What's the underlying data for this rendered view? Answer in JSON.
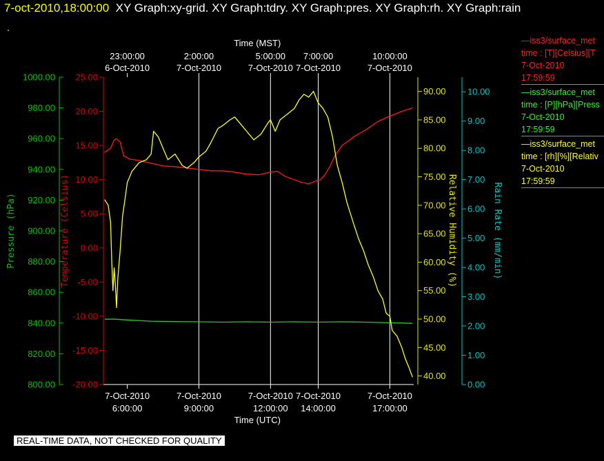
{
  "header": {
    "timestamp": "7-oct-2010,18:00:00",
    "graphs": "XY Graph:xy-grid.  XY Graph:tdry.  XY Graph:pres.  XY Graph:rh.  XY Graph:rain",
    "dot": "."
  },
  "notice": "REAL-TIME DATA, NOT CHECKED FOR QUALITY",
  "legend": [
    {
      "color": "#ff2020",
      "lines": [
        "—iss3/surface_met",
        "time : [T][Celsius][T",
        "7-Oct-2010",
        "17:59:59"
      ]
    },
    {
      "color": "#20ff20",
      "lines": [
        "—iss3/surface_met",
        "time : [P][hPa][Press",
        "7-Oct-2010",
        "17:59:59"
      ]
    },
    {
      "color": "#ffff30",
      "lines": [
        "—iss3/surface_met",
        "time : [rh][%][Relativ",
        "7-Oct-2010",
        "17:59:59"
      ]
    }
  ],
  "chart_data": {
    "type": "line",
    "x_bottom": {
      "label": "Time (UTC)",
      "range_hours": [
        5.0,
        18.0
      ],
      "ticks": [
        {
          "hour": 6,
          "date": "7-Oct-2010",
          "time": "6:00:00"
        },
        {
          "hour": 9,
          "date": "7-Oct-2010",
          "time": "9:00:00"
        },
        {
          "hour": 12,
          "date": "7-Oct-2010",
          "time": "12:00:00"
        },
        {
          "hour": 14,
          "date": "7-Oct-2010",
          "time": "14:00:00"
        },
        {
          "hour": 17,
          "date": "7-Oct-2010",
          "time": "17:00:00"
        }
      ]
    },
    "x_top": {
      "label": "Time (MST)",
      "ticks": [
        {
          "hour": 6,
          "time": "23:00:00",
          "date": "6-Oct-2010"
        },
        {
          "hour": 9,
          "time": "2:00:00",
          "date": "7-Oct-2010"
        },
        {
          "hour": 12,
          "time": "5:00:00",
          "date": "7-Oct-2010"
        },
        {
          "hour": 14,
          "time": "7:00:00",
          "date": "7-Oct-2010"
        },
        {
          "hour": 17,
          "time": "10:00:00",
          "date": "7-Oct-2010"
        }
      ]
    },
    "grid_x": [
      9,
      12,
      14,
      17
    ],
    "y_axes": {
      "pressure": {
        "label": "Pressure (hPa)",
        "range": [
          800,
          1000
        ],
        "ticks": [
          "800.00",
          "820.00",
          "840.00",
          "860.00",
          "880.00",
          "900.00",
          "920.00",
          "940.00",
          "960.00",
          "980.00",
          "1000.00"
        ],
        "color": "#00c800"
      },
      "temperature": {
        "label": "Temperature (Celsius)",
        "range": [
          -20,
          25
        ],
        "ticks": [
          "-20.00",
          "-15.00",
          "-10.00",
          "-5.00",
          "0.00",
          "5.00",
          "10.00",
          "15.00",
          "20.00",
          "25.00"
        ],
        "color": "#e00000"
      },
      "rh": {
        "label": "Relative Humidity (%)",
        "range": [
          38.5,
          92.5
        ],
        "ticks": [
          "40.00",
          "45.00",
          "50.00",
          "55.00",
          "60.00",
          "65.00",
          "70.00",
          "75.00",
          "80.00",
          "85.00",
          "90.00"
        ],
        "color": "#e8e800"
      },
      "rain": {
        "label": "Rain Rate (mm/min)",
        "range": [
          0,
          10.5
        ],
        "ticks": [
          "0.00",
          "1.00",
          "2.00",
          "3.00",
          "4.00",
          "5.00",
          "6.00",
          "7.00",
          "8.00",
          "9.00",
          "10.00"
        ],
        "color": "#00c8c8"
      }
    },
    "series": [
      {
        "name": "iss3/surface_met T (Celsius)",
        "axis": "temperature",
        "color": "#ff1a1a",
        "points": [
          [
            5.05,
            14.0
          ],
          [
            5.3,
            14.6
          ],
          [
            5.45,
            15.8
          ],
          [
            5.55,
            16.0
          ],
          [
            5.7,
            15.5
          ],
          [
            5.85,
            13.5
          ],
          [
            6.1,
            13.0
          ],
          [
            6.5,
            12.8
          ],
          [
            7.0,
            12.4
          ],
          [
            7.5,
            12.0
          ],
          [
            8.0,
            11.9
          ],
          [
            8.5,
            11.7
          ],
          [
            9.0,
            11.5
          ],
          [
            9.5,
            11.3
          ],
          [
            10.0,
            11.3
          ],
          [
            10.5,
            11.1
          ],
          [
            11.0,
            10.8
          ],
          [
            11.5,
            10.7
          ],
          [
            12.0,
            11.1
          ],
          [
            12.3,
            11.2
          ],
          [
            12.6,
            10.5
          ],
          [
            13.0,
            10.0
          ],
          [
            13.3,
            9.6
          ],
          [
            13.6,
            9.4
          ],
          [
            13.9,
            9.8
          ],
          [
            14.1,
            10.0
          ],
          [
            14.3,
            10.8
          ],
          [
            14.5,
            12.0
          ],
          [
            14.7,
            13.5
          ],
          [
            15.0,
            15.0
          ],
          [
            15.5,
            16.3
          ],
          [
            16.0,
            17.3
          ],
          [
            16.5,
            18.5
          ],
          [
            17.0,
            19.3
          ],
          [
            17.5,
            20.0
          ],
          [
            17.95,
            20.5
          ]
        ]
      },
      {
        "name": "iss3/surface_met P (hPa)",
        "axis": "pressure",
        "color": "#20d020",
        "points": [
          [
            5.05,
            842.5
          ],
          [
            5.5,
            842.5
          ],
          [
            6.0,
            842.0
          ],
          [
            7.0,
            841.2
          ],
          [
            8.0,
            841.0
          ],
          [
            9.0,
            840.8
          ],
          [
            10.0,
            840.6
          ],
          [
            11.0,
            840.8
          ],
          [
            12.0,
            840.6
          ],
          [
            13.0,
            840.8
          ],
          [
            14.0,
            840.6
          ],
          [
            15.0,
            840.8
          ],
          [
            16.0,
            840.6
          ],
          [
            17.0,
            840.2
          ],
          [
            17.95,
            839.8
          ]
        ]
      },
      {
        "name": "iss3/surface_met rh (%)",
        "axis": "rh",
        "color": "#ffff20",
        "points": [
          [
            5.05,
            71.0
          ],
          [
            5.2,
            70.0
          ],
          [
            5.3,
            67.0
          ],
          [
            5.35,
            60.0
          ],
          [
            5.4,
            55.0
          ],
          [
            5.45,
            59.0
          ],
          [
            5.5,
            56.0
          ],
          [
            5.55,
            52.0
          ],
          [
            5.6,
            57.0
          ],
          [
            5.7,
            62.0
          ],
          [
            5.8,
            68.0
          ],
          [
            5.9,
            71.0
          ],
          [
            6.0,
            74.0
          ],
          [
            6.2,
            76.0
          ],
          [
            6.5,
            77.5
          ],
          [
            6.8,
            78.0
          ],
          [
            7.0,
            79.0
          ],
          [
            7.1,
            83.0
          ],
          [
            7.3,
            82.0
          ],
          [
            7.5,
            80.0
          ],
          [
            7.7,
            78.0
          ],
          [
            8.0,
            79.0
          ],
          [
            8.3,
            77.0
          ],
          [
            8.5,
            76.5
          ],
          [
            8.8,
            77.5
          ],
          [
            9.0,
            78.5
          ],
          [
            9.3,
            79.5
          ],
          [
            9.5,
            81.0
          ],
          [
            9.8,
            83.5
          ],
          [
            10.0,
            84.0
          ],
          [
            10.3,
            85.0
          ],
          [
            10.5,
            85.5
          ],
          [
            10.8,
            84.0
          ],
          [
            11.0,
            83.0
          ],
          [
            11.3,
            81.5
          ],
          [
            11.6,
            82.5
          ],
          [
            11.9,
            84.5
          ],
          [
            12.0,
            85.0
          ],
          [
            12.2,
            83.0
          ],
          [
            12.4,
            85.0
          ],
          [
            12.7,
            86.0
          ],
          [
            13.0,
            87.0
          ],
          [
            13.2,
            88.5
          ],
          [
            13.4,
            89.5
          ],
          [
            13.6,
            89.0
          ],
          [
            13.8,
            90.0
          ],
          [
            14.0,
            88.0
          ],
          [
            14.2,
            87.0
          ],
          [
            14.4,
            85.5
          ],
          [
            14.6,
            82.0
          ],
          [
            14.8,
            77.0
          ],
          [
            15.0,
            74.0
          ],
          [
            15.2,
            70.5
          ],
          [
            15.5,
            66.5
          ],
          [
            15.7,
            64.0
          ],
          [
            15.9,
            62.0
          ],
          [
            16.1,
            59.5
          ],
          [
            16.3,
            57.5
          ],
          [
            16.5,
            55.0
          ],
          [
            16.7,
            53.5
          ],
          [
            16.85,
            51.0
          ],
          [
            17.0,
            50.5
          ],
          [
            17.1,
            48.0
          ],
          [
            17.3,
            47.0
          ],
          [
            17.5,
            45.0
          ],
          [
            17.65,
            43.0
          ],
          [
            17.8,
            41.5
          ],
          [
            17.95,
            39.8
          ]
        ]
      }
    ]
  }
}
